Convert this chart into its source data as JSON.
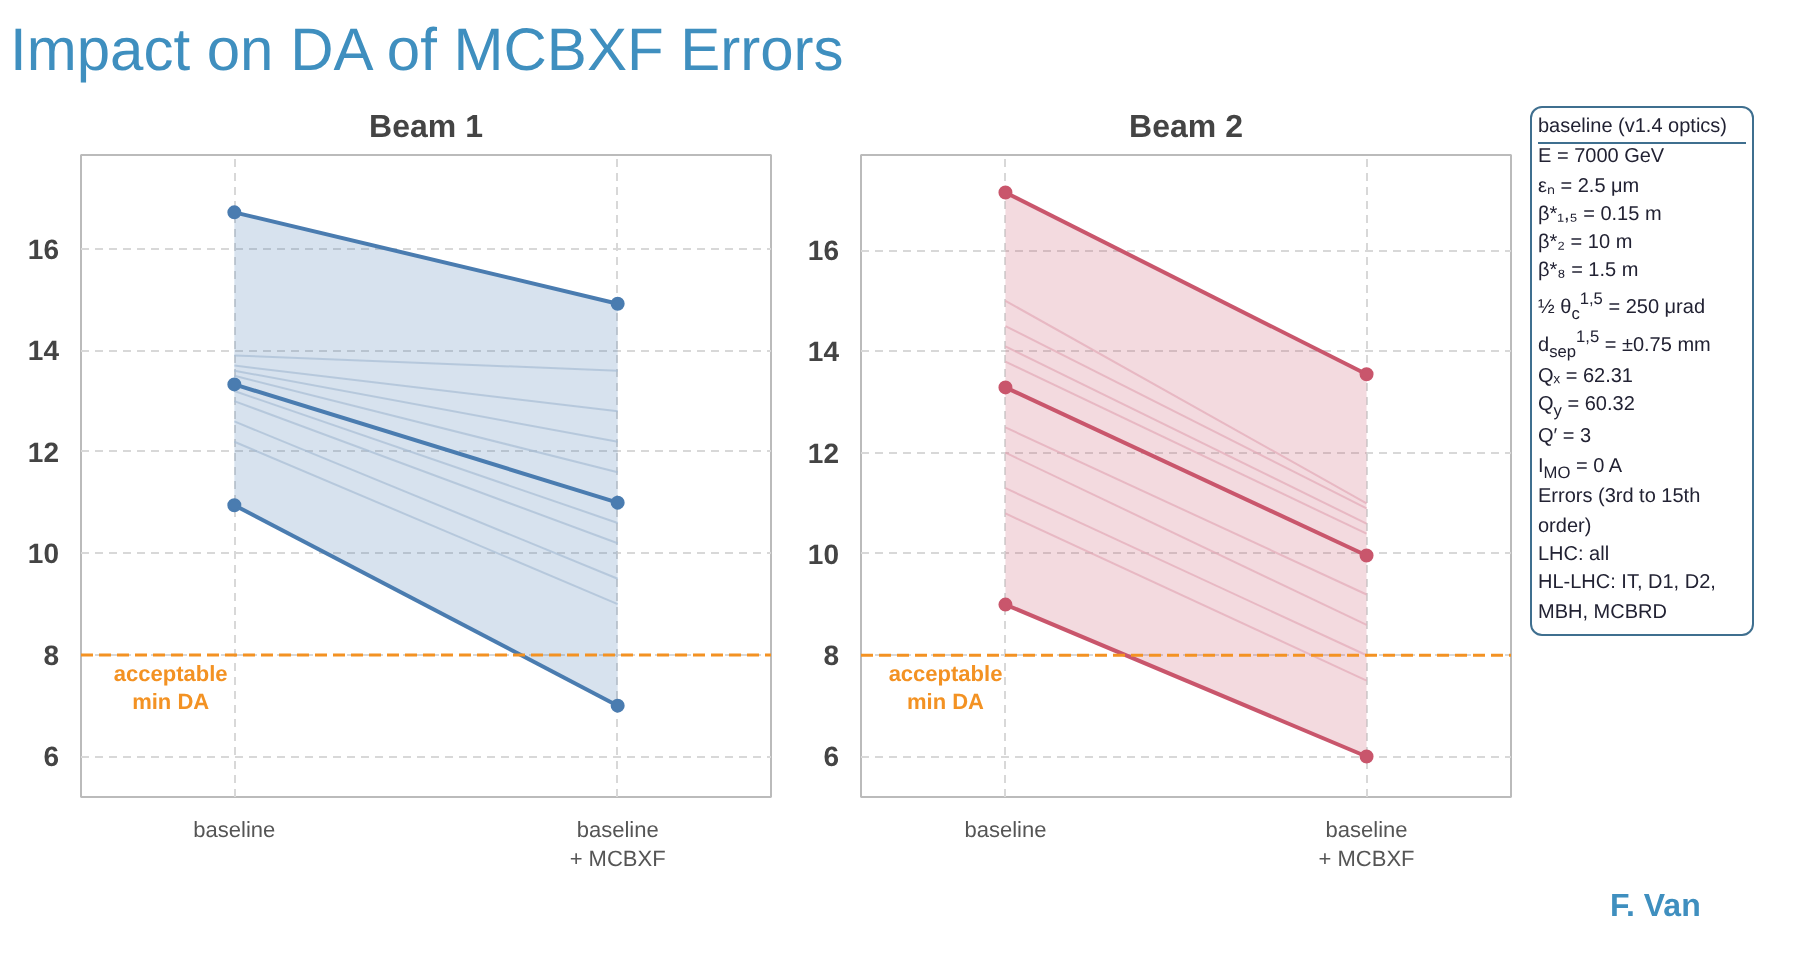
{
  "chart_data": [
    {
      "type": "other",
      "title": "Impact on DA of MCBXF Errors",
      "annotations": [
        "F. Van"
      ]
    },
    {
      "type": "line",
      "title": "Beam 1",
      "categories": [
        "baseline",
        "baseline\n+ MCBXF"
      ],
      "ylim": [
        5.2,
        17.85
      ],
      "yticks": [
        6,
        8,
        10,
        12,
        14,
        16
      ],
      "grid": true,
      "marker": "circle",
      "ref_lines": [
        {
          "axis": "y",
          "value": 8,
          "label": "acceptable\nmin DA",
          "color": "#f39223",
          "line_style": "dashed"
        }
      ],
      "series": [
        {
          "color": "#a8bdd4",
          "values": [
            13.9,
            13.6
          ],
          "marker": "none"
        },
        {
          "color": "#a8bdd4",
          "values": [
            13.7,
            12.8
          ],
          "marker": "none"
        },
        {
          "color": "#a8bdd4",
          "values": [
            13.6,
            12.2
          ],
          "marker": "none"
        },
        {
          "color": "#a8bdd4",
          "values": [
            13.5,
            11.6
          ],
          "marker": "none"
        },
        {
          "color": "#a8bdd4",
          "values": [
            13.2,
            10.6
          ],
          "marker": "none"
        },
        {
          "color": "#a8bdd4",
          "values": [
            13.0,
            10.2
          ],
          "marker": "none"
        },
        {
          "color": "#a8bdd4",
          "values": [
            12.6,
            9.5
          ],
          "marker": "none"
        },
        {
          "color": "#a8bdd4",
          "values": [
            12.2,
            9.0
          ],
          "marker": "none"
        },
        {
          "color": "#4a7cb0",
          "values": [
            16.72,
            14.92
          ]
        },
        {
          "color": "#4a7cb0",
          "values": [
            13.33,
            11.0
          ],
          "lower": [
            10.95,
            7.0
          ],
          "upper": [
            16.72,
            14.92
          ]
        },
        {
          "color": "#4a7cb0",
          "values": [
            10.95,
            7.0
          ]
        }
      ]
    },
    {
      "type": "line",
      "title": "Beam 2",
      "categories": [
        "baseline",
        "baseline\n+ MCBXF"
      ],
      "ylim": [
        5.2,
        17.88
      ],
      "yticks": [
        6,
        8,
        10,
        12,
        14,
        16
      ],
      "grid": true,
      "marker": "circle",
      "ref_lines": [
        {
          "axis": "y",
          "value": 8,
          "label": "acceptable\nmin DA",
          "color": "#f39223",
          "line_style": "dashed"
        }
      ],
      "series": [
        {
          "color": "#e3aab6",
          "values": [
            15.0,
            11.0
          ],
          "marker": "none"
        },
        {
          "color": "#e3aab6",
          "values": [
            14.5,
            10.9
          ],
          "marker": "none"
        },
        {
          "color": "#e3aab6",
          "values": [
            14.1,
            10.6
          ],
          "marker": "none"
        },
        {
          "color": "#e3aab6",
          "values": [
            13.8,
            10.4
          ],
          "marker": "none"
        },
        {
          "color": "#e3aab6",
          "values": [
            12.5,
            9.2
          ],
          "marker": "none"
        },
        {
          "color": "#e3aab6",
          "values": [
            12.0,
            8.6
          ],
          "marker": "none"
        },
        {
          "color": "#e3aab6",
          "values": [
            11.3,
            8.0
          ],
          "marker": "none"
        },
        {
          "color": "#e3aab6",
          "values": [
            10.8,
            7.5
          ],
          "marker": "none"
        },
        {
          "color": "#c9566c",
          "values": [
            17.14,
            13.55
          ]
        },
        {
          "color": "#c9566c",
          "values": [
            13.29,
            9.97
          ],
          "lower": [
            9.0,
            6.0
          ],
          "upper": [
            17.14,
            13.55
          ]
        },
        {
          "color": "#c9566c",
          "values": [
            9.0,
            6.0
          ]
        }
      ]
    },
    {
      "type": "other",
      "title": "baseline (v1.4 optics)",
      "annotations": [
        "E = 7000 GeV",
        "εₙ = 2.5 μm",
        "β*₁,₅ = 0.15 m",
        "β*₂ = 10 m",
        "β*₈ = 1.5 m",
        "½ θ$_{c}$$^{1,5}$ = 250 μrad",
        "d$_{sep}$$^{1,5}$ = ±0.75 mm",
        "Qₓ = 62.31",
        "Q$_{y}$ = 60.32",
        "Q′ = 3",
        "I$_{MO}$ = 0 A",
        "Errors (3rd to 15th order)",
        "LHC: all",
        "HL-LHC: IT, D1, D2, MBH, MCBRD"
      ]
    }
  ]
}
